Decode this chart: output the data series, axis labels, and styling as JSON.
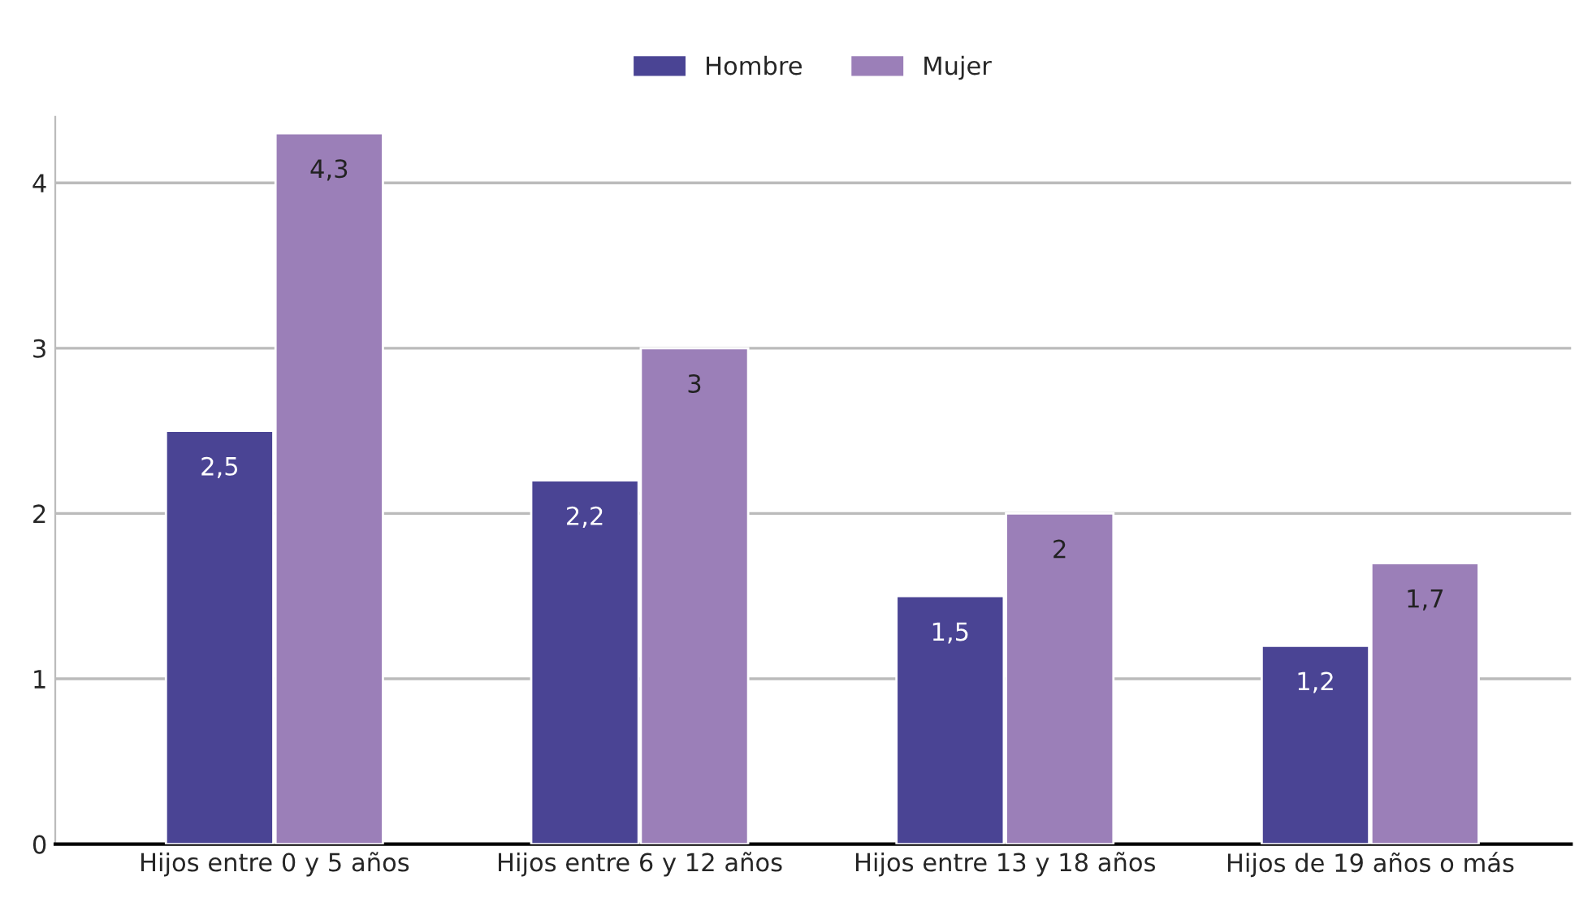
{
  "chart_data": {
    "type": "bar",
    "categories": [
      "Hijos entre 0 y 5 años",
      "Hijos entre 6 y 12 años",
      "Hijos entre 13 y 18 años",
      "Hijos de 19 años o más"
    ],
    "series": [
      {
        "name": "Hombre",
        "color": "#4a4494",
        "values": [
          2.5,
          2.2,
          1.5,
          1.2
        ],
        "value_labels": [
          "2,5",
          "2,2",
          "1,5",
          "1,2"
        ]
      },
      {
        "name": "Mujer",
        "color": "#9b7fb8",
        "values": [
          4.3,
          3,
          2,
          1.7
        ],
        "value_labels": [
          "4,3",
          "3",
          "2",
          "1,7"
        ]
      }
    ],
    "ylim": [
      0,
      4.4
    ],
    "yticks": [
      0,
      1,
      2,
      3,
      4
    ],
    "grid": "y",
    "legend": "top"
  }
}
